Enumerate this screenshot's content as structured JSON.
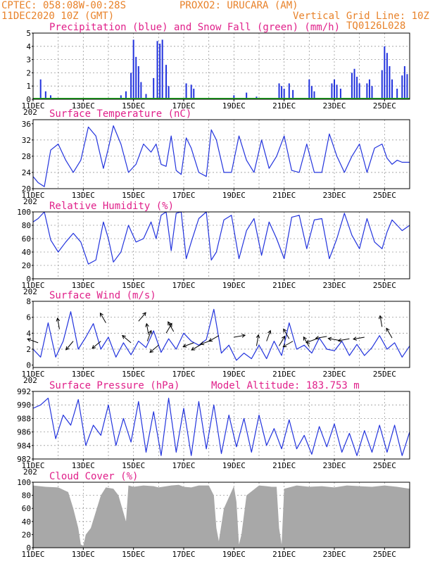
{
  "header": {
    "left_line1": "CPTEC:   058:08W-00:28S",
    "left_line1b": "PROXO2: URUCARA (AM)",
    "left_line2": "11DEC2020 10Z (GMT)",
    "right_line2": "Vertical Grid Line: 10Z",
    "right_line3": "TQ0126L028"
  },
  "x_axis": {
    "day_labels": [
      "11DEC",
      "13DEC",
      "15DEC",
      "17DEC",
      "19DEC",
      "21DEC",
      "23DEC",
      "25DEC"
    ],
    "year_stub": "202"
  },
  "colors": {
    "series": "#2233dd",
    "snow": "#22aa22",
    "cloud": "#a8a8a8",
    "title": "#e0208a",
    "header": "#e8822a"
  },
  "chart_data": [
    {
      "id": "precip",
      "type": "bar",
      "title": "Precipitation (blue) and Snow Fall (green) (mm/h)",
      "ylim": [
        0,
        5
      ],
      "yticks": [
        0,
        1,
        2,
        3,
        4,
        5
      ],
      "x_days": [
        0,
        15
      ],
      "series": [
        {
          "name": "Precipitation",
          "events": [
            [
              0.3,
              1.5
            ],
            [
              0.5,
              0.6
            ],
            [
              0.7,
              0.3
            ],
            [
              3.5,
              0.3
            ],
            [
              3.7,
              0.6
            ],
            [
              3.9,
              2.0
            ],
            [
              4.0,
              4.5
            ],
            [
              4.1,
              3.2
            ],
            [
              4.2,
              2.5
            ],
            [
              4.3,
              1.3
            ],
            [
              4.5,
              0.4
            ],
            [
              4.8,
              1.6
            ],
            [
              4.95,
              4.4
            ],
            [
              5.05,
              4.2
            ],
            [
              5.15,
              4.5
            ],
            [
              5.3,
              2.6
            ],
            [
              5.4,
              1.0
            ],
            [
              6.1,
              1.2
            ],
            [
              6.3,
              1.1
            ],
            [
              6.4,
              0.8
            ],
            [
              8.0,
              0.3
            ],
            [
              8.5,
              0.5
            ],
            [
              8.9,
              0.2
            ],
            [
              9.8,
              1.2
            ],
            [
              9.9,
              1.0
            ],
            [
              10.0,
              0.8
            ],
            [
              10.2,
              1.2
            ],
            [
              10.35,
              0.7
            ],
            [
              11.0,
              1.5
            ],
            [
              11.1,
              1.0
            ],
            [
              11.2,
              0.6
            ],
            [
              11.9,
              1.2
            ],
            [
              12.0,
              1.5
            ],
            [
              12.1,
              1.1
            ],
            [
              12.25,
              0.8
            ],
            [
              12.7,
              2.0
            ],
            [
              12.8,
              2.3
            ],
            [
              12.9,
              1.7
            ],
            [
              13.0,
              1.2
            ],
            [
              13.3,
              1.2
            ],
            [
              13.4,
              1.5
            ],
            [
              13.5,
              1.0
            ],
            [
              13.9,
              2.2
            ],
            [
              14.0,
              4.0
            ],
            [
              14.1,
              3.5
            ],
            [
              14.2,
              2.5
            ],
            [
              14.3,
              1.5
            ],
            [
              14.5,
              0.8
            ],
            [
              14.7,
              1.8
            ],
            [
              14.8,
              2.5
            ],
            [
              14.9,
              1.9
            ]
          ]
        },
        {
          "name": "Snow Fall",
          "events": []
        }
      ]
    },
    {
      "id": "temperature",
      "type": "line",
      "title": "Surface Temperature (nC)",
      "ylim": [
        20,
        37
      ],
      "yticks": [
        20,
        24,
        28,
        32,
        36
      ],
      "x": [
        0,
        0.2,
        0.45,
        0.7,
        1.0,
        1.3,
        1.6,
        1.9,
        2.2,
        2.5,
        2.8,
        3.0,
        3.2,
        3.5,
        3.8,
        4.1,
        4.4,
        4.7,
        4.9,
        5.1,
        5.3,
        5.5,
        5.7,
        5.9,
        6.1,
        6.3,
        6.6,
        6.9,
        7.1,
        7.3,
        7.6,
        7.9,
        8.2,
        8.5,
        8.8,
        9.1,
        9.4,
        9.7,
        10.0,
        10.3,
        10.6,
        10.9,
        11.2,
        11.5,
        11.8,
        12.1,
        12.4,
        12.7,
        13.0,
        13.3,
        13.6,
        13.9,
        14.1,
        14.3,
        14.5,
        14.7,
        15.0
      ],
      "values": [
        23.0,
        21.5,
        20.5,
        29.5,
        31.0,
        27.0,
        24.0,
        27.0,
        35.2,
        33.0,
        25.0,
        30.0,
        35.5,
        31.0,
        24.0,
        26.0,
        31.0,
        29.0,
        31.0,
        26.0,
        25.5,
        33.0,
        24.5,
        23.5,
        32.5,
        30.0,
        24.0,
        23.0,
        34.5,
        32.0,
        24.0,
        24.0,
        33.0,
        27.0,
        24.0,
        32.0,
        25.0,
        28.0,
        33.0,
        24.5,
        24.0,
        31.0,
        24.0,
        24.0,
        33.5,
        28.0,
        24.0,
        28.0,
        31.0,
        24.0,
        30.0,
        31.0,
        27.5,
        26.0,
        27.0,
        26.5,
        26.5
      ]
    },
    {
      "id": "humidity",
      "type": "line",
      "title": "Relative Humidity (%)",
      "ylim": [
        0,
        100
      ],
      "yticks": [
        0,
        20,
        40,
        60,
        80,
        100
      ],
      "x": [
        0,
        0.2,
        0.45,
        0.7,
        1.0,
        1.3,
        1.6,
        1.9,
        2.2,
        2.5,
        2.8,
        3.0,
        3.2,
        3.5,
        3.8,
        4.1,
        4.4,
        4.7,
        4.9,
        5.1,
        5.3,
        5.5,
        5.7,
        5.9,
        6.1,
        6.3,
        6.6,
        6.9,
        7.1,
        7.3,
        7.6,
        7.9,
        8.2,
        8.5,
        8.8,
        9.1,
        9.4,
        9.7,
        10.0,
        10.3,
        10.6,
        10.9,
        11.2,
        11.5,
        11.8,
        12.1,
        12.4,
        12.7,
        13.0,
        13.3,
        13.6,
        13.9,
        14.1,
        14.3,
        14.5,
        14.7,
        15.0
      ],
      "values": [
        85.0,
        90.0,
        100.0,
        58.0,
        40.0,
        55.0,
        68.0,
        55.0,
        22.0,
        28.0,
        85.0,
        60.0,
        25.0,
        40.0,
        80.0,
        55.0,
        60.0,
        85.0,
        60.0,
        95.0,
        100.0,
        42.0,
        98.0,
        100.0,
        30.0,
        55.0,
        90.0,
        100.0,
        28.0,
        40.0,
        88.0,
        95.0,
        30.0,
        72.0,
        90.0,
        35.0,
        85.0,
        60.0,
        30.0,
        92.0,
        95.0,
        45.0,
        88.0,
        90.0,
        30.0,
        60.0,
        98.0,
        65.0,
        45.0,
        90.0,
        55.0,
        45.0,
        70.0,
        88.0,
        80.0,
        72.0,
        80.0
      ]
    },
    {
      "id": "wind",
      "type": "line",
      "title": "Surface Wind (m/s)",
      "ylim": [
        -0.3,
        8
      ],
      "yticks": [
        0,
        2,
        4,
        6,
        8
      ],
      "x": [
        0,
        0.3,
        0.6,
        0.9,
        1.2,
        1.5,
        1.8,
        2.1,
        2.4,
        2.7,
        3.0,
        3.3,
        3.6,
        3.9,
        4.2,
        4.5,
        4.8,
        5.1,
        5.4,
        5.7,
        6.0,
        6.3,
        6.6,
        6.9,
        7.2,
        7.5,
        7.8,
        8.1,
        8.4,
        8.7,
        9.0,
        9.3,
        9.6,
        9.9,
        10.2,
        10.5,
        10.8,
        11.1,
        11.4,
        11.7,
        12.0,
        12.3,
        12.6,
        12.9,
        13.2,
        13.5,
        13.8,
        14.1,
        14.4,
        14.7,
        15.0
      ],
      "values": [
        2.0,
        1.0,
        5.3,
        1.0,
        3.0,
        6.7,
        2.0,
        3.5,
        5.2,
        2.0,
        3.5,
        1.0,
        2.8,
        1.3,
        3.0,
        2.2,
        4.3,
        1.6,
        3.3,
        2.0,
        4.0,
        3.0,
        2.5,
        3.2,
        7.0,
        1.5,
        2.5,
        0.6,
        1.5,
        0.8,
        2.5,
        0.8,
        3.0,
        1.2,
        5.3,
        2.0,
        2.5,
        1.5,
        3.4,
        2.0,
        1.8,
        3.0,
        1.2,
        2.6,
        1.2,
        2.2,
        3.7,
        2.0,
        2.8,
        1.0,
        2.4
      ],
      "arrows": [
        [
          0.2,
          2.8,
          160
        ],
        [
          1.05,
          4.5,
          100
        ],
        [
          1.6,
          3.0,
          230
        ],
        [
          2.7,
          3.0,
          220
        ],
        [
          2.9,
          5.3,
          120
        ],
        [
          3.9,
          2.8,
          140
        ],
        [
          4.2,
          5.5,
          50
        ],
        [
          4.55,
          3.0,
          70
        ],
        [
          4.6,
          3.8,
          100
        ],
        [
          5.0,
          2.5,
          220
        ],
        [
          5.3,
          4.0,
          60
        ],
        [
          5.6,
          4.2,
          120
        ],
        [
          6.4,
          2.8,
          200
        ],
        [
          6.7,
          2.6,
          210
        ],
        [
          7.1,
          3.1,
          200
        ],
        [
          7.4,
          3.7,
          210
        ],
        [
          8.0,
          3.5,
          10
        ],
        [
          8.9,
          2.4,
          80
        ],
        [
          9.3,
          3.0,
          70
        ],
        [
          9.8,
          2.4,
          60
        ],
        [
          10.2,
          3.3,
          120
        ],
        [
          10.35,
          3.0,
          210
        ],
        [
          11.0,
          2.3,
          120
        ],
        [
          11.3,
          3.3,
          200
        ],
        [
          11.7,
          3.6,
          190
        ],
        [
          12.2,
          3.1,
          170
        ],
        [
          12.6,
          3.3,
          190
        ],
        [
          13.2,
          3.5,
          190
        ],
        [
          13.9,
          4.8,
          100
        ],
        [
          14.3,
          3.4,
          120
        ]
      ]
    },
    {
      "id": "pressure",
      "type": "line",
      "title": "Surface Pressure (hPa)",
      "annotation": "Model Altitude: 183.753 m",
      "ylim": [
        982,
        992
      ],
      "yticks": [
        982,
        984,
        986,
        988,
        990,
        992
      ],
      "x": [
        0,
        0.3,
        0.6,
        0.9,
        1.2,
        1.5,
        1.8,
        2.1,
        2.4,
        2.7,
        3.0,
        3.3,
        3.6,
        3.9,
        4.2,
        4.5,
        4.8,
        5.1,
        5.4,
        5.7,
        6.0,
        6.3,
        6.6,
        6.9,
        7.2,
        7.5,
        7.8,
        8.1,
        8.4,
        8.7,
        9.0,
        9.3,
        9.6,
        9.9,
        10.2,
        10.5,
        10.8,
        11.1,
        11.4,
        11.7,
        12.0,
        12.3,
        12.6,
        12.9,
        13.2,
        13.5,
        13.8,
        14.1,
        14.4,
        14.7,
        15.0
      ],
      "values": [
        989.5,
        990.0,
        991.0,
        985.0,
        988.5,
        987.0,
        990.8,
        984.0,
        987.0,
        985.5,
        990.0,
        984.0,
        988.0,
        984.5,
        990.5,
        983.0,
        989.0,
        982.5,
        991.0,
        983.0,
        989.5,
        982.5,
        990.5,
        983.5,
        990.0,
        982.8,
        988.5,
        983.8,
        988.0,
        983.0,
        988.5,
        984.0,
        986.5,
        983.5,
        987.8,
        983.5,
        985.5,
        982.7,
        986.8,
        983.8,
        987.2,
        983.0,
        985.8,
        982.5,
        986.2,
        983.0,
        987.0,
        983.0,
        987.0,
        982.5,
        986.0
      ]
    },
    {
      "id": "cloud",
      "type": "area",
      "title": "Cloud Cover (%)",
      "ylim": [
        0,
        100
      ],
      "yticks": [
        0,
        20,
        40,
        60,
        80,
        100
      ],
      "x": [
        0,
        0.5,
        1.0,
        1.4,
        1.6,
        1.8,
        1.9,
        2.0,
        2.1,
        2.3,
        2.7,
        2.9,
        3.2,
        3.4,
        3.7,
        3.8,
        4.0,
        4.4,
        4.8,
        5.0,
        5.5,
        5.8,
        6.0,
        6.3,
        6.6,
        7.0,
        7.2,
        7.3,
        7.4,
        7.6,
        8.0,
        8.1,
        8.2,
        8.3,
        8.5,
        9.0,
        9.3,
        9.5,
        9.7,
        9.8,
        9.9,
        10.0,
        10.5,
        11.0,
        11.5,
        12.0,
        12.5,
        13.0,
        13.5,
        14.0,
        14.5,
        15.0
      ],
      "values": [
        95,
        93,
        92,
        85,
        60,
        30,
        5,
        3,
        20,
        30,
        80,
        92,
        90,
        80,
        40,
        95,
        93,
        95,
        94,
        92,
        95,
        96,
        93,
        92,
        95,
        95,
        80,
        30,
        10,
        60,
        94,
        70,
        5,
        20,
        80,
        95,
        94,
        93,
        93,
        30,
        5,
        90,
        95,
        93,
        94,
        92,
        95,
        94,
        93,
        95,
        93,
        90
      ]
    }
  ]
}
